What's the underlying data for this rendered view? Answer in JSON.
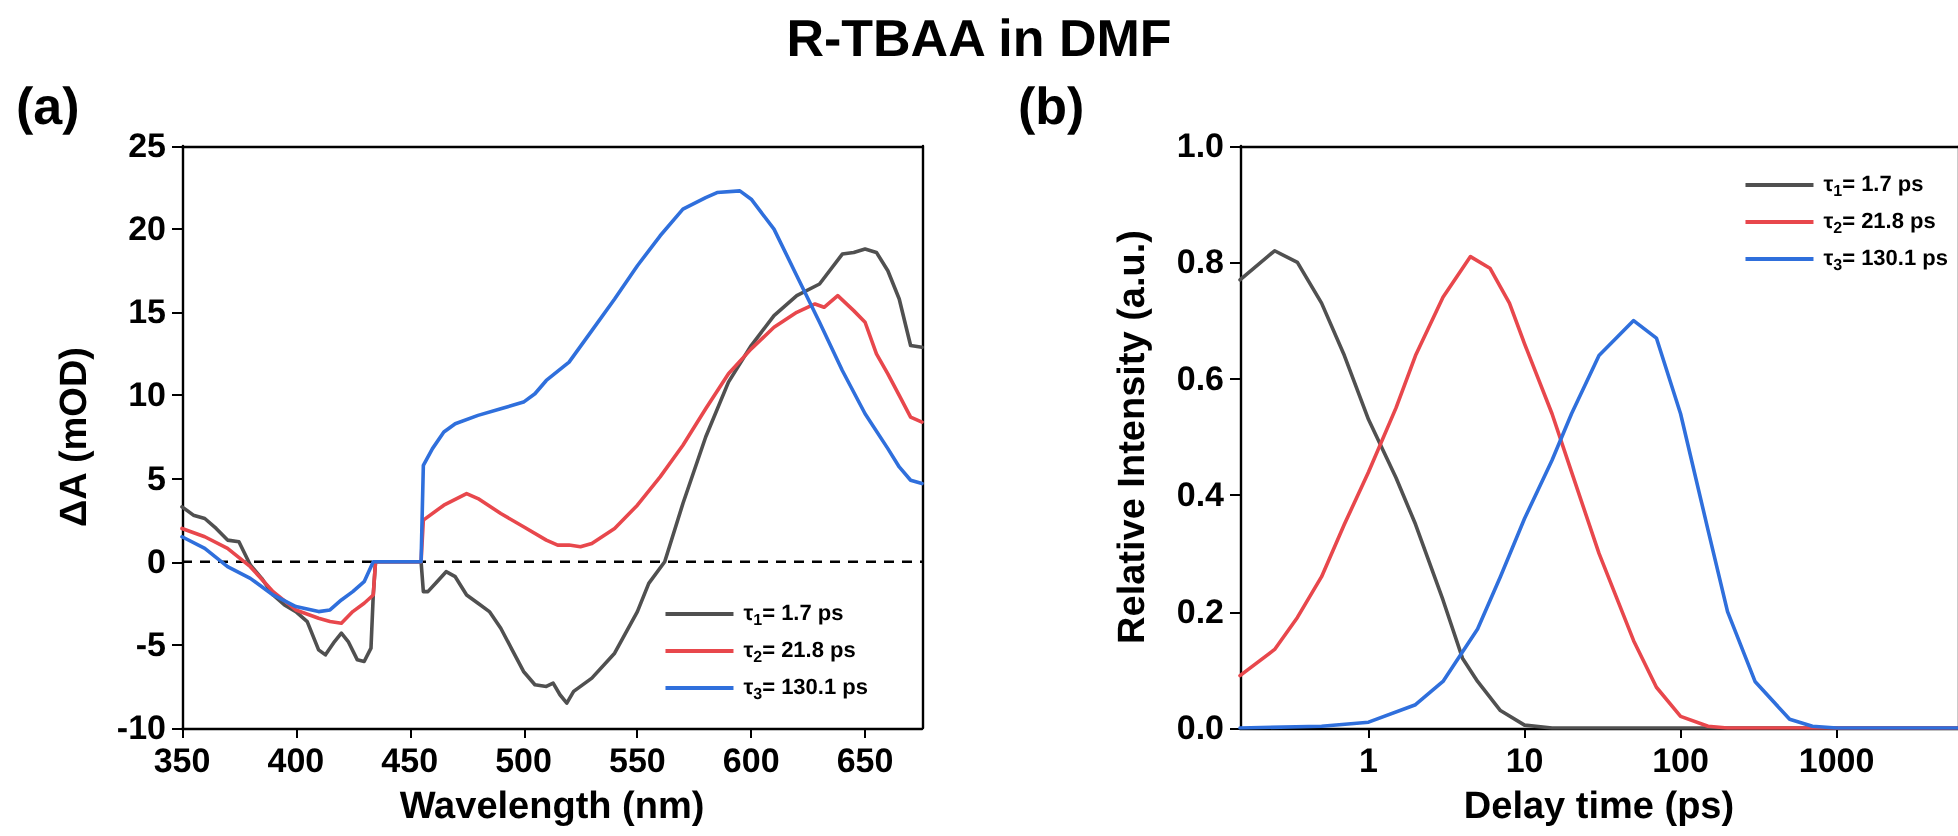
{
  "chart_data": [
    {
      "type": "line",
      "title": "R-TBAA in DMF",
      "xlabel": "Wavelength (nm)",
      "ylabel": "ΔA (mOD)",
      "annotations": [
        "(a)"
      ],
      "xlim": [
        350,
        675
      ],
      "xticks": [
        350,
        400,
        450,
        500,
        550,
        600,
        650
      ],
      "ylim": [
        -10,
        25
      ],
      "yticks": [
        -10,
        -5,
        0,
        5,
        10,
        15,
        20,
        25
      ],
      "grid": false,
      "legend": "bottom right",
      "line_style": "solid",
      "marker": "none",
      "ref_lines": [
        {
          "axis": "y",
          "value": 0,
          "color": "#000000",
          "line_style": "dashed"
        }
      ],
      "series": [
        {
          "name": "τ$_{1}$= 1.7 ps",
          "color": "#505050",
          "x": [
            350,
            355,
            360,
            365,
            370,
            375,
            380,
            385,
            390,
            395,
            400,
            405,
            410,
            413,
            417,
            420,
            423,
            427,
            430,
            433,
            434,
            435,
            440,
            450,
            455,
            456,
            458,
            462,
            466,
            470,
            475,
            480,
            485,
            490,
            495,
            500,
            505,
            510,
            513,
            516,
            519,
            522,
            530,
            540,
            550,
            555,
            562,
            570,
            580,
            590,
            600,
            610,
            620,
            630,
            640,
            645,
            650,
            655,
            660,
            665,
            670,
            675
          ],
          "values": [
            3.3,
            2.8,
            2.6,
            2.0,
            1.3,
            1.2,
            -0.2,
            -1.0,
            -2.0,
            -2.6,
            -3.0,
            -3.6,
            -5.3,
            -5.6,
            -4.8,
            -4.3,
            -4.8,
            -5.9,
            -6.0,
            -5.2,
            -2.0,
            0,
            0,
            0,
            0,
            -1.8,
            -1.8,
            -1.2,
            -0.6,
            -0.9,
            -2.0,
            -2.5,
            -3.0,
            -4.0,
            -5.3,
            -6.6,
            -7.4,
            -7.5,
            -7.3,
            -8.0,
            -8.5,
            -7.8,
            -7.0,
            -5.5,
            -3.0,
            -1.3,
            0,
            3.5,
            7.5,
            10.8,
            13.0,
            14.8,
            16.0,
            16.7,
            18.5,
            18.6,
            18.8,
            18.6,
            17.5,
            15.8,
            13.0,
            12.9
          ]
        },
        {
          "name": "τ$_{2}$= 21.8 ps",
          "color": "#e8474c",
          "x": [
            350,
            360,
            370,
            380,
            390,
            400,
            410,
            415,
            420,
            425,
            430,
            434,
            435,
            455,
            456,
            465,
            475,
            480,
            490,
            500,
            510,
            515,
            520,
            525,
            530,
            540,
            550,
            560,
            570,
            580,
            590,
            600,
            610,
            620,
            628,
            632,
            638,
            645,
            650,
            655,
            660,
            665,
            670,
            675
          ],
          "values": [
            2.0,
            1.5,
            0.8,
            -0.3,
            -1.8,
            -2.9,
            -3.4,
            -3.6,
            -3.7,
            -3.0,
            -2.5,
            -2.0,
            0,
            0,
            2.5,
            3.4,
            4.1,
            3.8,
            2.9,
            2.1,
            1.3,
            1.0,
            1.0,
            0.9,
            1.1,
            2.0,
            3.4,
            5.1,
            7.0,
            9.2,
            11.3,
            12.8,
            14.1,
            15.0,
            15.5,
            15.3,
            16.0,
            15.1,
            14.4,
            12.5,
            11.3,
            10.0,
            8.7,
            8.4
          ]
        },
        {
          "name": "τ$_{3}$= 130.1 ps",
          "color": "#2f6fdc",
          "x": [
            350,
            360,
            370,
            380,
            390,
            400,
            410,
            415,
            420,
            425,
            430,
            434,
            455,
            456,
            460,
            465,
            470,
            480,
            490,
            500,
            505,
            510,
            520,
            530,
            540,
            550,
            560,
            570,
            580,
            585,
            595,
            600,
            610,
            620,
            630,
            640,
            650,
            660,
            665,
            670,
            675
          ],
          "values": [
            1.5,
            0.8,
            -0.3,
            -1.0,
            -2.0,
            -2.7,
            -3.0,
            -2.9,
            -2.3,
            -1.8,
            -1.2,
            0,
            0,
            5.8,
            6.8,
            7.8,
            8.3,
            8.8,
            9.2,
            9.6,
            10.1,
            10.9,
            12.0,
            13.9,
            15.8,
            17.8,
            19.6,
            21.2,
            21.9,
            22.2,
            22.3,
            21.8,
            20.0,
            17.2,
            14.4,
            11.5,
            8.9,
            6.8,
            5.7,
            4.9,
            4.7
          ]
        }
      ]
    },
    {
      "type": "line",
      "xlabel": "Delay time (ps)",
      "ylabel": "Relative Intensity (a.u.)",
      "annotations": [
        "(b)"
      ],
      "log": "x",
      "xlim": [
        0.15,
        6000
      ],
      "xticks": [
        1,
        10,
        100,
        1000
      ],
      "ylim": [
        0,
        1
      ],
      "yticks": [
        {
          "value": 0,
          "label": "0.0"
        },
        {
          "value": 0.2,
          "label": "0.2"
        },
        {
          "value": 0.4,
          "label": "0.4"
        },
        {
          "value": 0.6,
          "label": "0.6"
        },
        {
          "value": 0.8,
          "label": "0.8"
        },
        {
          "value": 1,
          "label": "1.0"
        }
      ],
      "grid": false,
      "legend": "top right",
      "line_style": "solid",
      "marker": "none",
      "series": [
        {
          "name": "τ$_{1}$= 1.7 ps",
          "color": "#505050",
          "x": [
            0.15,
            0.25,
            0.35,
            0.5,
            0.7,
            1,
            1.5,
            2,
            3,
            4,
            5,
            7,
            10,
            15,
            6000
          ],
          "values": [
            0.77,
            0.82,
            0.8,
            0.73,
            0.64,
            0.53,
            0.43,
            0.35,
            0.22,
            0.12,
            0.08,
            0.03,
            0.005,
            0,
            0
          ]
        },
        {
          "name": "τ$_{2}$= 21.8 ps",
          "color": "#e8474c",
          "x": [
            0.15,
            0.25,
            0.35,
            0.5,
            0.7,
            1,
            1.5,
            2,
            3,
            4.5,
            6,
            8,
            10,
            15,
            20,
            30,
            50,
            70,
            100,
            150,
            200,
            6000
          ],
          "values": [
            0.09,
            0.135,
            0.19,
            0.26,
            0.35,
            0.44,
            0.55,
            0.64,
            0.74,
            0.81,
            0.79,
            0.73,
            0.66,
            0.54,
            0.44,
            0.3,
            0.15,
            0.07,
            0.02,
            0.003,
            0,
            0
          ]
        },
        {
          "name": "τ$_{3}$= 130.1 ps",
          "color": "#2f6fdc",
          "x": [
            0.15,
            0.5,
            1,
            2,
            3,
            5,
            7,
            10,
            15,
            20,
            30,
            50,
            70,
            100,
            150,
            200,
            300,
            500,
            700,
            1000,
            6000
          ],
          "values": [
            0,
            0.003,
            0.01,
            0.04,
            0.08,
            0.17,
            0.26,
            0.36,
            0.46,
            0.54,
            0.64,
            0.7,
            0.67,
            0.54,
            0.34,
            0.2,
            0.08,
            0.015,
            0.003,
            0,
            0
          ]
        }
      ]
    }
  ]
}
